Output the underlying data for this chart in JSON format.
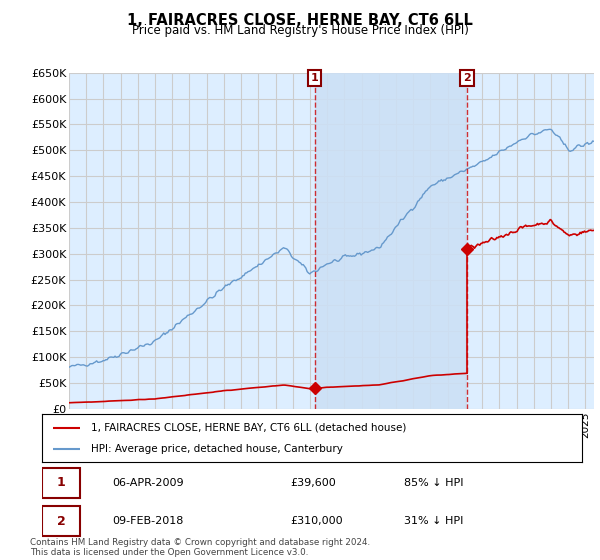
{
  "title": "1, FAIRACRES CLOSE, HERNE BAY, CT6 6LL",
  "subtitle": "Price paid vs. HM Land Registry's House Price Index (HPI)",
  "background_color": "#ffffff",
  "plot_bg_color": "#ddeeff",
  "plot_shade_color": "#cce0f5",
  "grid_color": "#cccccc",
  "hpi_color": "#6699cc",
  "sale_color": "#cc0000",
  "vline_color": "#cc0000",
  "ylim": [
    0,
    650000
  ],
  "yticks": [
    0,
    50000,
    100000,
    150000,
    200000,
    250000,
    300000,
    350000,
    400000,
    450000,
    500000,
    550000,
    600000,
    650000
  ],
  "ytick_labels": [
    "£0",
    "£50K",
    "£100K",
    "£150K",
    "£200K",
    "£250K",
    "£300K",
    "£350K",
    "£400K",
    "£450K",
    "£500K",
    "£550K",
    "£600K",
    "£650K"
  ],
  "sale1_date": 2009.27,
  "sale1_price": 39600,
  "sale2_date": 2018.12,
  "sale2_price": 310000,
  "legend_line1": "1, FAIRACRES CLOSE, HERNE BAY, CT6 6LL (detached house)",
  "legend_line2": "HPI: Average price, detached house, Canterbury",
  "table_label1": "1",
  "table_date1": "06-APR-2009",
  "table_price1": "£39,600",
  "table_hpi1": "85% ↓ HPI",
  "table_label2": "2",
  "table_date2": "09-FEB-2018",
  "table_price2": "£310,000",
  "table_hpi2": "31% ↓ HPI",
  "footnote": "Contains HM Land Registry data © Crown copyright and database right 2024.\nThis data is licensed under the Open Government Licence v3.0.",
  "xmin": 1995,
  "xmax": 2025.5
}
